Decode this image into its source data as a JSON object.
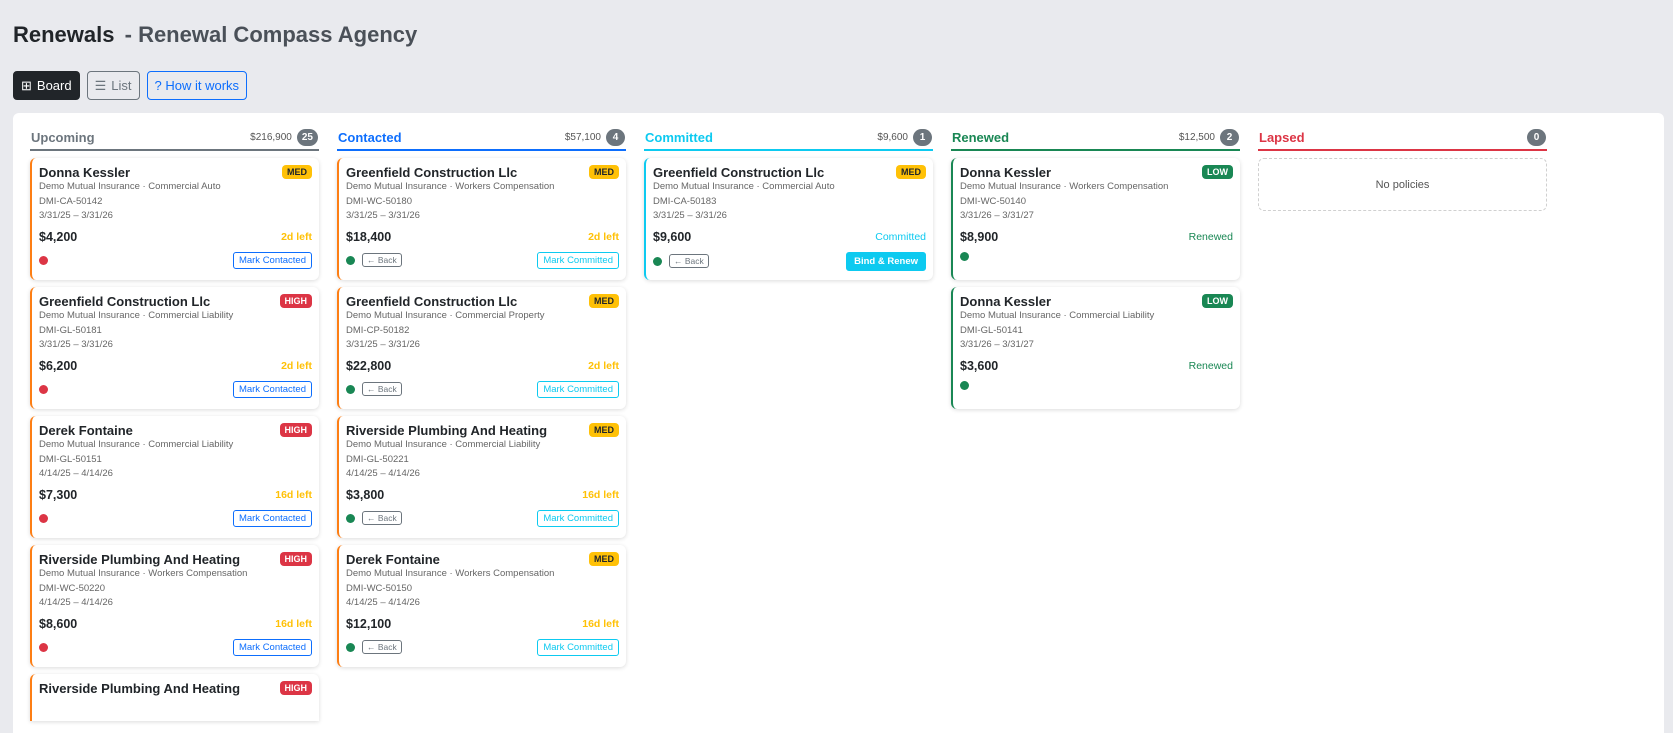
{
  "header": {
    "title": "Renewals",
    "subtitle": "- Renewal Compass Agency"
  },
  "toolbar": {
    "board": "Board",
    "list": "List",
    "how": "? How it works"
  },
  "colors": {
    "orange": "#fd7e14",
    "red": "#dc3545",
    "green": "#198754",
    "cyan": "#0dcaf0",
    "blue": "#0d6efd",
    "yellow": "#ffc107"
  },
  "columns": [
    {
      "title": "Upcoming",
      "sum": "$216,900",
      "count": "25",
      "color": "#6c757d",
      "cards": [
        {
          "name": "Donna Kessler",
          "priority": "MED",
          "carrier": "Demo Mutual Insurance · Commercial Auto",
          "policy": "DMI-CA-50142",
          "term": "3/31/25 – 3/31/26",
          "amount": "$4,200",
          "status": "2d left",
          "dot": "red",
          "action": "Mark Contacted"
        },
        {
          "name": "Greenfield Construction Llc",
          "priority": "HIGH",
          "carrier": "Demo Mutual Insurance · Commercial Liability",
          "policy": "DMI-GL-50181",
          "term": "3/31/25 – 3/31/26",
          "amount": "$6,200",
          "status": "2d left",
          "dot": "red",
          "action": "Mark Contacted"
        },
        {
          "name": "Derek Fontaine",
          "priority": "HIGH",
          "carrier": "Demo Mutual Insurance · Commercial Liability",
          "policy": "DMI-GL-50151",
          "term": "4/14/25 – 4/14/26",
          "amount": "$7,300",
          "status": "16d left",
          "dot": "red",
          "action": "Mark Contacted"
        },
        {
          "name": "Riverside Plumbing And Heating",
          "priority": "HIGH",
          "carrier": "Demo Mutual Insurance · Workers Compensation",
          "policy": "DMI-WC-50220",
          "term": "4/14/25 – 4/14/26",
          "amount": "$8,600",
          "status": "16d left",
          "dot": "red",
          "action": "Mark Contacted"
        },
        {
          "name": "Riverside Plumbing And Heating",
          "priority": "HIGH"
        }
      ]
    },
    {
      "title": "Contacted",
      "sum": "$57,100",
      "count": "4",
      "color": "#0d6efd",
      "cards": [
        {
          "name": "Greenfield Construction Llc",
          "priority": "MED",
          "carrier": "Demo Mutual Insurance · Workers Compensation",
          "policy": "DMI-WC-50180",
          "term": "3/31/25 – 3/31/26",
          "amount": "$18,400",
          "status": "2d left",
          "dot": "green",
          "back": "← Back",
          "action": "Mark Committed"
        },
        {
          "name": "Greenfield Construction Llc",
          "priority": "MED",
          "carrier": "Demo Mutual Insurance · Commercial Property",
          "policy": "DMI-CP-50182",
          "term": "3/31/25 – 3/31/26",
          "amount": "$22,800",
          "status": "2d left",
          "dot": "green",
          "back": "← Back",
          "action": "Mark Committed"
        },
        {
          "name": "Riverside Plumbing And Heating",
          "priority": "MED",
          "carrier": "Demo Mutual Insurance · Commercial Liability",
          "policy": "DMI-GL-50221",
          "term": "4/14/25 – 4/14/26",
          "amount": "$3,800",
          "status": "16d left",
          "dot": "green",
          "back": "← Back",
          "action": "Mark Committed"
        },
        {
          "name": "Derek Fontaine",
          "priority": "MED",
          "carrier": "Demo Mutual Insurance · Workers Compensation",
          "policy": "DMI-WC-50150",
          "term": "4/14/25 – 4/14/26",
          "amount": "$12,100",
          "status": "16d left",
          "dot": "green",
          "back": "← Back",
          "action": "Mark Committed"
        }
      ]
    },
    {
      "title": "Committed",
      "sum": "$9,600",
      "count": "1",
      "color": "#0dcaf0",
      "cards": [
        {
          "name": "Greenfield Construction Llc",
          "priority": "MED",
          "carrier": "Demo Mutual Insurance · Commercial Auto",
          "policy": "DMI-CA-50183",
          "term": "3/31/25 – 3/31/26",
          "amount": "$9,600",
          "status": "Committed",
          "dot": "green",
          "back": "← Back",
          "action": "Bind & Renew"
        }
      ]
    },
    {
      "title": "Renewed",
      "sum": "$12,500",
      "count": "2",
      "color": "#198754",
      "cards": [
        {
          "name": "Donna Kessler",
          "priority": "LOW",
          "carrier": "Demo Mutual Insurance · Workers Compensation",
          "policy": "DMI-WC-50140",
          "term": "3/31/26 – 3/31/27",
          "amount": "$8,900",
          "status": "Renewed",
          "dot": "green"
        },
        {
          "name": "Donna Kessler",
          "priority": "LOW",
          "carrier": "Demo Mutual Insurance · Commercial Liability",
          "policy": "DMI-GL-50141",
          "term": "3/31/26 – 3/31/27",
          "amount": "$3,600",
          "status": "Renewed",
          "dot": "green"
        }
      ]
    },
    {
      "title": "Lapsed",
      "sum": "",
      "count": "0",
      "color": "#dc3545",
      "empty": "No policies",
      "cards": []
    }
  ]
}
